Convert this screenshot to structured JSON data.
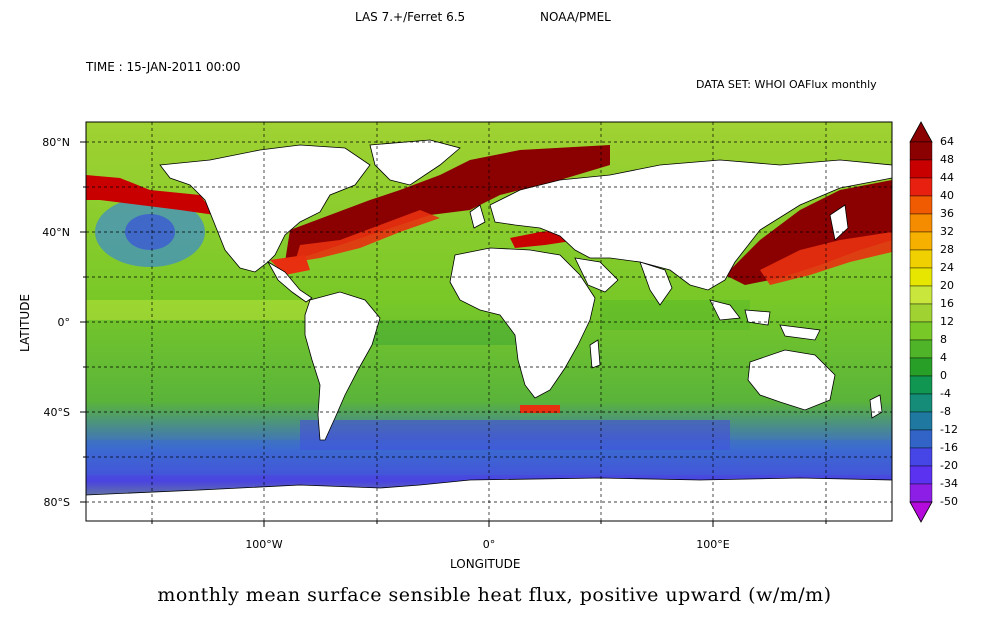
{
  "header": {
    "software": "LAS 7.+/Ferret 6.5",
    "organization": "NOAA/PMEL"
  },
  "time_label": "TIME : 15-JAN-2011 00:00",
  "dataset_label": "DATA SET: WHOI OAFlux monthly",
  "axes": {
    "ylabel": "LATITUDE",
    "xlabel": "LONGITUDE",
    "yticks": [
      "80°N",
      "40°N",
      "0°",
      "40°S",
      "80°S"
    ],
    "xticks": [
      "100°W",
      "0°",
      "100°E"
    ]
  },
  "caption": "monthly mean surface sensible heat flux, positive upward (w/m/m)",
  "colorbar": {
    "labels": [
      "64",
      "48",
      "44",
      "40",
      "36",
      "32",
      "28",
      "24",
      "20",
      "16",
      "12",
      "8",
      "4",
      "0",
      "-4",
      "-8",
      "-12",
      "-16",
      "-20",
      "-34",
      "-50"
    ],
    "colors": [
      "#8b0000",
      "#c80000",
      "#e82010",
      "#f05a00",
      "#f58c00",
      "#f5b000",
      "#f0d000",
      "#e6e600",
      "#c8e63c",
      "#a0d232",
      "#78c828",
      "#50b428",
      "#28a028",
      "#109650",
      "#148c78",
      "#1e78a0",
      "#3264c8",
      "#4646e6",
      "#5a32f0",
      "#8c1ee6",
      "#b40adc"
    ]
  },
  "map": {
    "land_color": "#ffffff",
    "ocean_palette": {
      "warm": "#8b0000",
      "hot": "#e83010",
      "mid": "#7cc62a",
      "cool": "#2a9a3a",
      "cold": "#3c5ad2",
      "coldest": "#4a3ce6"
    }
  }
}
